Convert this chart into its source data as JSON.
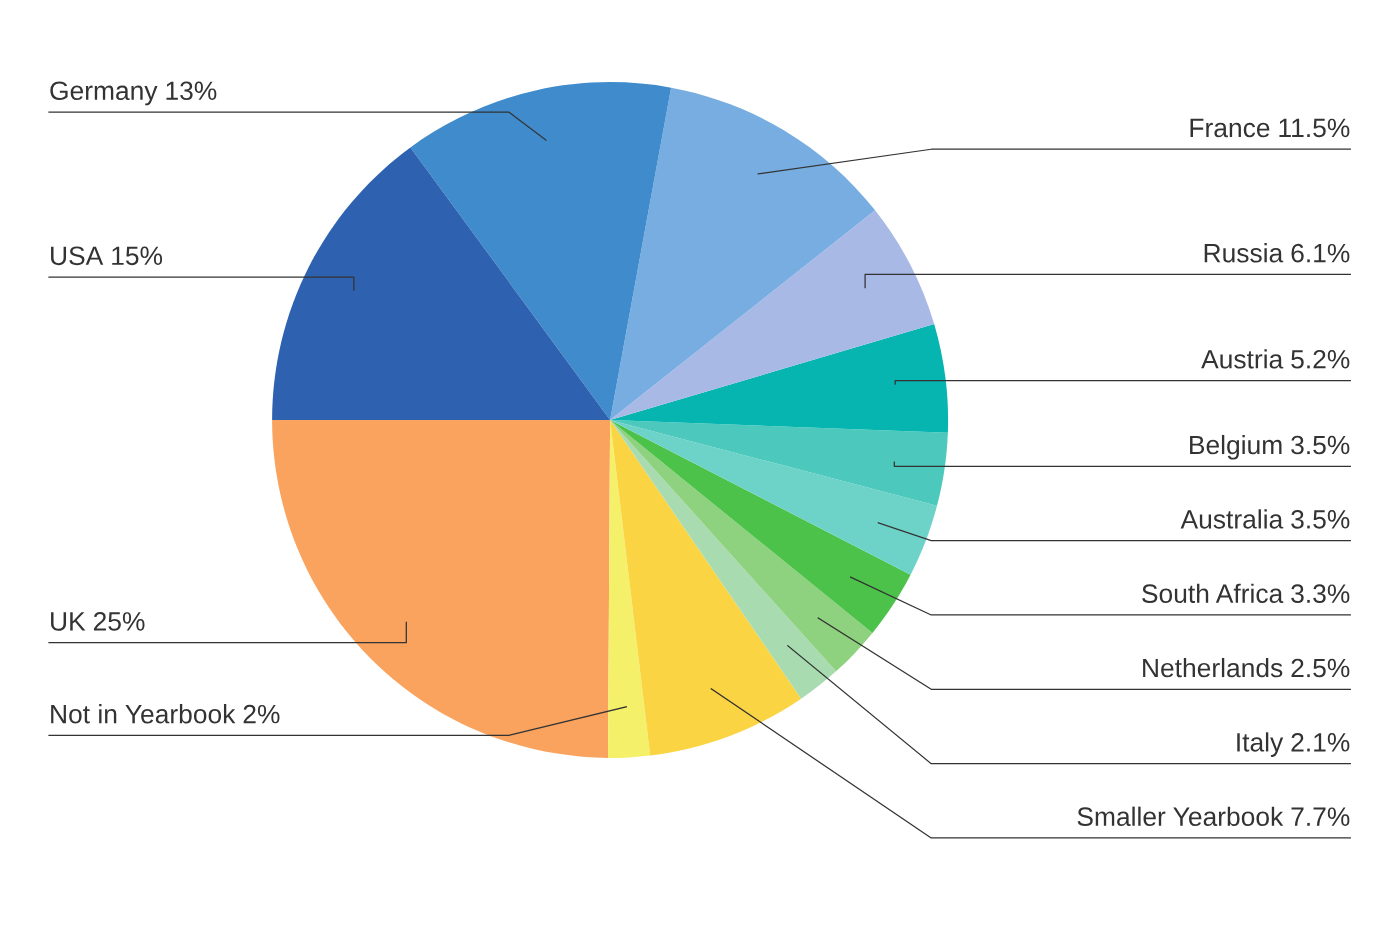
{
  "chart_data": {
    "type": "pie",
    "categories": [
      "UK",
      "Not in Yearbook",
      "Smaller Yearbook",
      "Italy",
      "Netherlands",
      "South Africa",
      "Australia",
      "Belgium",
      "Austria",
      "Russia",
      "France",
      "Germany",
      "USA"
    ],
    "values": [
      25,
      2,
      7.7,
      2.1,
      2.5,
      3.3,
      3.5,
      3.5,
      5.2,
      6.1,
      11.5,
      13,
      15
    ],
    "value_labels": [
      "25%",
      "2%",
      "7.7%",
      "2.1%",
      "2.5%",
      "3.3%",
      "3.5%",
      "3.5%",
      "5.2%",
      "6.1%",
      "11.5%",
      "13%",
      "15%"
    ],
    "colors": [
      "#f9a35f",
      "#f5f06a",
      "#fbd443",
      "#a8dcb0",
      "#8ed17e",
      "#4cc24a",
      "#6dd2c8",
      "#4cc9bc",
      "#06b5b0",
      "#a9b9e6",
      "#77ade0",
      "#3f8bcc",
      "#2e62b0"
    ]
  }
}
